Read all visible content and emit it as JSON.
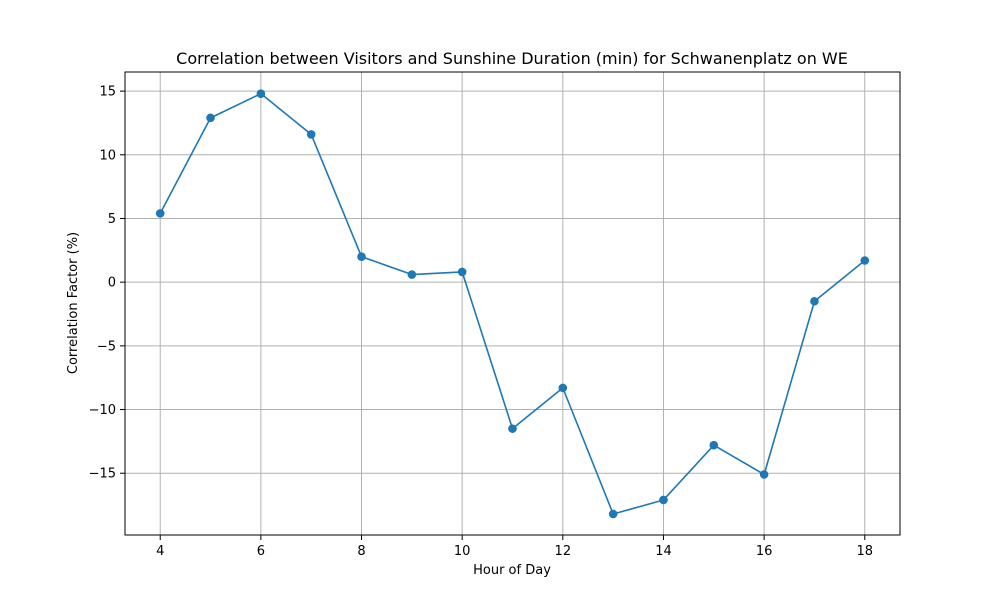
{
  "chart_data": {
    "type": "line",
    "title": "Correlation between Visitors and Sunshine Duration (min) for Schwanenplatz on WE",
    "xlabel": "Hour of Day",
    "ylabel": "Correlation Factor (%)",
    "x": [
      4,
      5,
      6,
      7,
      8,
      9,
      10,
      11,
      12,
      13,
      14,
      15,
      16,
      17,
      18
    ],
    "series": [
      {
        "values": [
          5.4,
          12.9,
          14.8,
          11.6,
          2.0,
          0.6,
          0.8,
          -11.5,
          -8.3,
          -18.2,
          -17.1,
          -12.8,
          -15.1,
          -1.5,
          1.7
        ]
      }
    ],
    "xlim": [
      3.3,
      18.7
    ],
    "ylim": [
      -19.85,
      16.5
    ],
    "xticks": [
      4,
      6,
      8,
      10,
      12,
      14,
      16,
      18
    ],
    "yticks": [
      -15,
      -10,
      -5,
      0,
      5,
      10,
      15
    ],
    "grid": true,
    "markers": true,
    "colors": {
      "line": "#1f77b4",
      "grid": "#b0b0b0",
      "axis": "#000000"
    }
  }
}
